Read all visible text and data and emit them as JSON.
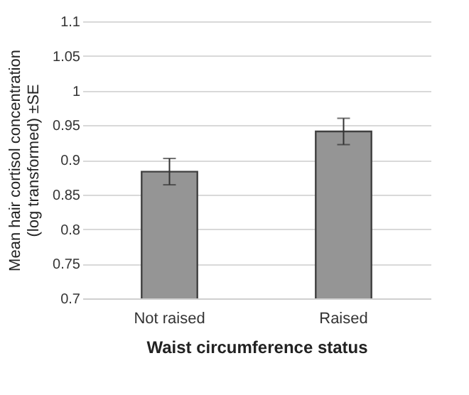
{
  "chart_data": {
    "type": "bar",
    "xlabel": "Waist circumference status",
    "ylabel": "Mean hair cortisol concentration (log transformed) ±SE",
    "categories": [
      "Not raised",
      "Raised"
    ],
    "values": [
      0.883,
      0.941
    ],
    "errors": [
      0.019,
      0.019
    ],
    "color": "#959595",
    "ylim": [
      0.7,
      1.1
    ],
    "yticks": [
      0.7,
      0.75,
      0.8,
      0.85,
      0.9,
      0.95,
      1,
      1.05,
      1.1
    ],
    "grid": "y"
  }
}
